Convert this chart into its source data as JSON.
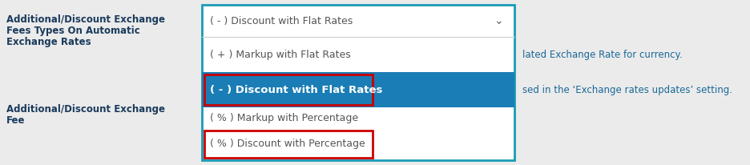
{
  "bg_color": "#ebebeb",
  "left_label1_lines": [
    "Additional/Discount Exchange",
    "Fees Types On Automatic",
    "Exchange Rates"
  ],
  "left_label2_lines": [
    "Additional/Discount Exchange",
    "Fee"
  ],
  "right_text1": "lated Exchange Rate for currency.",
  "right_text2": "sed in the ‘Exchange rates updates’ setting.",
  "dropdown_border_color": "#1a9bb5",
  "dropdown_bg": "#ffffff",
  "menu_items": [
    {
      "text": "( - ) Discount with Flat Rates",
      "highlight": false,
      "red_border": false,
      "chevron": true
    },
    {
      "text": "( + ) Markup with Flat Rates",
      "highlight": false,
      "red_border": false,
      "chevron": false
    },
    {
      "text": "( - ) Discount with Flat Rates",
      "highlight": true,
      "red_border": true,
      "chevron": false
    },
    {
      "text": "( % ) Markup with Percentage",
      "highlight": false,
      "red_border": false,
      "chevron": false
    },
    {
      "text": "( % ) Discount with Percentage",
      "highlight": false,
      "red_border": true,
      "chevron": false
    }
  ],
  "highlight_color": "#1a7db5",
  "highlight_text_color": "#ffffff",
  "normal_text_color": "#555555",
  "red_border_color": "#cc0000",
  "left_text_color": "#1a3a5c",
  "right_text_color": "#1a6898",
  "chevron_color": "#666666"
}
